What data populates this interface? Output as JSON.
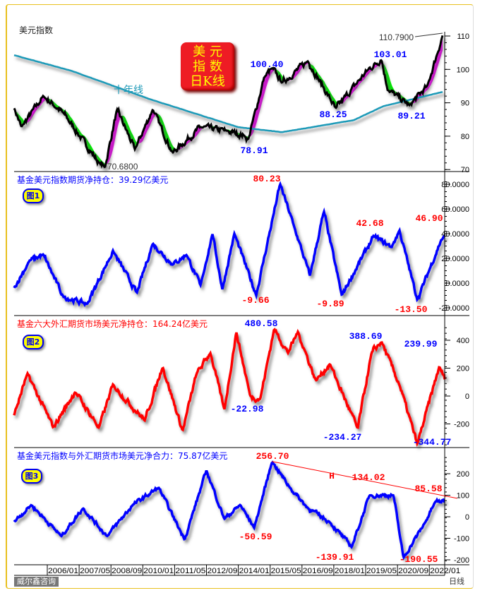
{
  "colors": {
    "price": "#000000",
    "ma10y": "#1e9ab8",
    "up_fill": "#ff00ff",
    "down_fill": "#00ee00",
    "blue": "#0000ff",
    "red": "#ff0000",
    "trend": "#ff0000"
  },
  "chart_data": [
    {
      "type": "line",
      "title": "美元指数",
      "ylim": [
        70,
        112
      ],
      "yticks": [
        70,
        80,
        90,
        100,
        110
      ],
      "series": [
        {
          "name": "美元指数",
          "points": [
            [
              "2004-08",
              89
            ],
            [
              "2004-12",
              82.7
            ],
            [
              "2005-11",
              92
            ],
            [
              "2006-09",
              87
            ],
            [
              "2008-03",
              72
            ],
            [
              "2008-06",
              70.68
            ],
            [
              "2008-12",
              88
            ],
            [
              "2009-09",
              76
            ],
            [
              "2010-06",
              88
            ],
            [
              "2011-04",
              75
            ],
            [
              "2012-06",
              82.7
            ],
            [
              "2013-07",
              81.6
            ],
            [
              "2014-04",
              80.2
            ],
            [
              "2014-06",
              78.91
            ],
            [
              "2015-02",
              97.6
            ],
            [
              "2015-06",
              100.4
            ],
            [
              "2015-11",
              96
            ],
            [
              "2016-12",
              102.5
            ],
            [
              "2018-02",
              88.25
            ],
            [
              "2019-06",
              99.8
            ],
            [
              "2020-01",
              103.01
            ],
            [
              "2020-04",
              94
            ],
            [
              "2021-03",
              89.21
            ],
            [
              "2021-12",
              95
            ],
            [
              "2022-08",
              110.79
            ]
          ]
        },
        {
          "name": "十年线",
          "points": [
            [
              "2004-08",
              104.3
            ],
            [
              "2007-01",
              99.6
            ],
            [
              "2010-05",
              91
            ],
            [
              "2014-01",
              82.7
            ],
            [
              "2015-11",
              81.2
            ],
            [
              "2018-11",
              84.8
            ],
            [
              "2020-02",
              89
            ],
            [
              "2022-08",
              93.3
            ]
          ]
        }
      ],
      "annotations": {
        "last": "110.7900",
        "high1": "100.40",
        "high2": "103.01",
        "low1": "88.25",
        "low2": "89.21",
        "low3": "78.91",
        "low_min": "70.6800",
        "ma_label": "十年线"
      }
    },
    {
      "type": "line",
      "title": "基金美元指数期货净持仓：39.29亿美元",
      "fig_label": "图1",
      "ylim": [
        -22,
        84
      ],
      "yticks": [
        -20,
        0,
        20,
        40,
        60,
        80
      ],
      "ytick_labels": [
        "-20.0000",
        "0.0000",
        "20.0000",
        "40.0000",
        "60.0000",
        "80.0000"
      ],
      "series": [
        {
          "points": [
            [
              "2004-08",
              -5
            ],
            [
              "2005-04",
              18
            ],
            [
              "2005-11",
              23
            ],
            [
              "2006-09",
              -11
            ],
            [
              "2007-09",
              -17
            ],
            [
              "2008-10",
              26
            ],
            [
              "2009-10",
              -8
            ],
            [
              "2010-06",
              32
            ],
            [
              "2011-04",
              15
            ],
            [
              "2011-11",
              23
            ],
            [
              "2012-06",
              -2
            ],
            [
              "2012-12",
              40
            ],
            [
              "2013-05",
              -5
            ],
            [
              "2013-11",
              40
            ],
            [
              "2014-10",
              -9.66
            ],
            [
              "2015-10",
              80.23
            ],
            [
              "2016-05",
              46
            ],
            [
              "2017-01",
              6
            ],
            [
              "2017-08",
              58
            ],
            [
              "2018-05",
              -9.89
            ],
            [
              "2019-09",
              38
            ],
            [
              "2020-06",
              29
            ],
            [
              "2020-10",
              42.68
            ],
            [
              "2021-07",
              -13.5
            ],
            [
              "2022-07",
              35
            ],
            [
              "2023-06",
              46.9
            ],
            [
              "2023-09",
              39.29
            ]
          ]
        }
      ],
      "annotations": {
        "max": "80.23",
        "h2": "42.68",
        "h3": "46.90",
        "l1": "-9.66",
        "l2": "-9.89",
        "l3": "-13.50"
      }
    },
    {
      "type": "line",
      "title": "基金六大外汇期货市场美元净持仓：164.24亿美元",
      "fig_label": "图2",
      "ylim": [
        -350,
        520
      ],
      "yticks": [
        -200,
        0,
        200,
        400
      ],
      "series": [
        {
          "points": [
            [
              "2004-08",
              -150
            ],
            [
              "2005-03",
              160
            ],
            [
              "2006-04",
              -225
            ],
            [
              "2007-03",
              30
            ],
            [
              "2008-03",
              -225
            ],
            [
              "2008-10",
              80
            ],
            [
              "2010-02",
              -175
            ],
            [
              "2010-11",
              210
            ],
            [
              "2011-09",
              -250
            ],
            [
              "2012-04",
              160
            ],
            [
              "2012-11",
              310
            ],
            [
              "2013-06",
              -100
            ],
            [
              "2013-12",
              460
            ],
            [
              "2014-07",
              0
            ],
            [
              "2014-12",
              -22.98
            ],
            [
              "2015-07",
              480.58
            ],
            [
              "2016-02",
              310
            ],
            [
              "2016-07",
              460
            ],
            [
              "2017-04",
              110
            ],
            [
              "2017-11",
              230
            ],
            [
              "2019-01",
              -234.27
            ],
            [
              "2019-08",
              310
            ],
            [
              "2020-01",
              388.69
            ],
            [
              "2020-10",
              80
            ],
            [
              "2021-07",
              -344.77
            ],
            [
              "2022-06",
              210
            ],
            [
              "2022-11",
              55
            ],
            [
              "2023-09",
              164.24
            ]
          ]
        }
      ],
      "annotations": {
        "max": "480.58",
        "h2": "388.69",
        "h3": "239.99",
        "l1": "-22.98",
        "l2": "-234.27",
        "l3": "-344.77"
      }
    },
    {
      "type": "line",
      "title": "基金美元指数与外汇期货市场美元净合力：75.87亿美元",
      "fig_label": "图3",
      "ylim": [
        -205,
        280
      ],
      "yticks": [
        -200,
        -100,
        0,
        100,
        200
      ],
      "series": [
        {
          "points": [
            [
              "2004-08",
              -25
            ],
            [
              "2005-05",
              55
            ],
            [
              "2006-08",
              -90
            ],
            [
              "2007-07",
              40
            ],
            [
              "2008-07",
              -90
            ],
            [
              "2009-08",
              55
            ],
            [
              "2010-09",
              135
            ],
            [
              "2011-10",
              -105
            ],
            [
              "2012-09",
              215
            ],
            [
              "2013-06",
              -10
            ],
            [
              "2014-02",
              55
            ],
            [
              "2014-09",
              -50.59
            ],
            [
              "2015-06",
              256.7
            ],
            [
              "2016-03",
              135
            ],
            [
              "2016-12",
              40
            ],
            [
              "2017-11",
              -25
            ],
            [
              "2018-10",
              -139.91
            ],
            [
              "2019-07",
              100
            ],
            [
              "2020-07",
              100
            ],
            [
              "2020-12",
              -190.55
            ],
            [
              "2021-11",
              -25
            ],
            [
              "2022-04",
              70
            ],
            [
              "2023-05",
              75.87
            ]
          ]
        },
        {
          "name": "trend",
          "points": [
            [
              "2015-06",
              256.7
            ],
            [
              "2023-03",
              85.58
            ]
          ]
        }
      ],
      "annotations": {
        "max": "256.70",
        "mid": "134.02",
        "h_mark": "H",
        "h3": "85.58",
        "l1": "-50.59",
        "l2": "-139.91",
        "l3": "-190.55"
      }
    }
  ],
  "x_axis": {
    "tick_labels": [
      "2006/01",
      "2007/05",
      "2008/09",
      "2010/01",
      "2011/05",
      "2012/09",
      "2014/01",
      "2015/05",
      "2016/09",
      "2018/01",
      "2019/05",
      "2020/09",
      "2022/01"
    ]
  },
  "badge": {
    "line1": "美 元",
    "line2": "指 数",
    "line3": "日K线"
  },
  "footer": {
    "brand": "威尔鑫咨询",
    "period": "日线"
  }
}
